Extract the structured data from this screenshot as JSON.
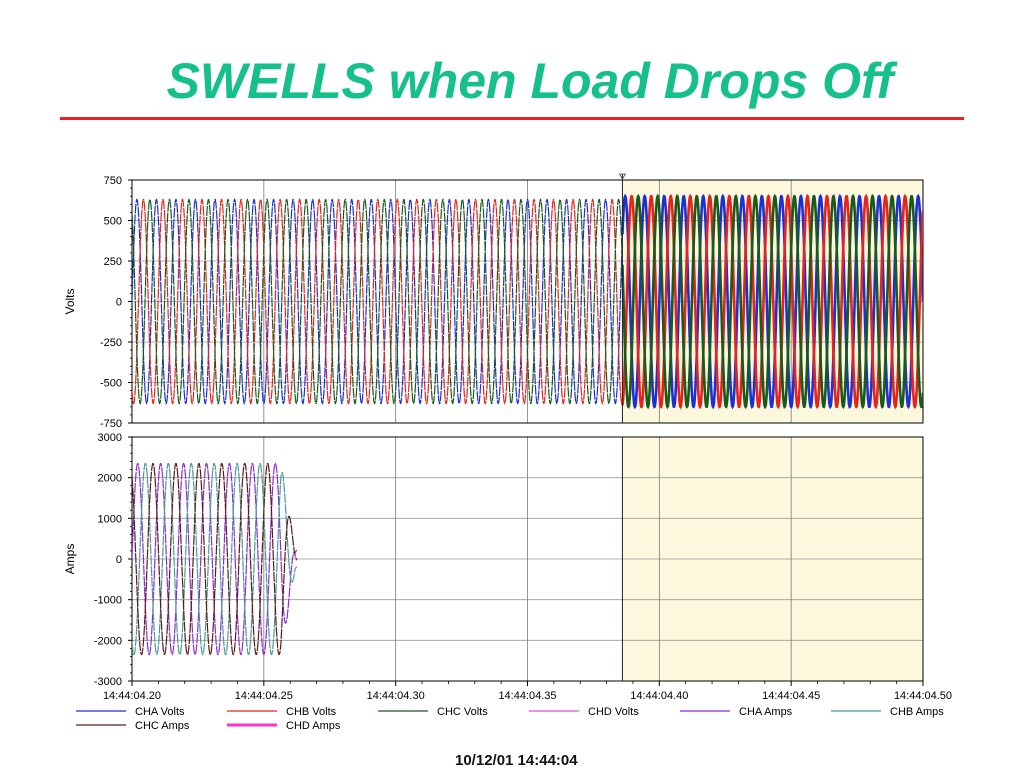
{
  "slide": {
    "title": "SWELLS when Load Drops Off",
    "footer": "10/12/01 14:44:04"
  },
  "chart_data": {
    "type": "line",
    "x_tick_labels": [
      "14:44:04.20",
      "14:44:04.25",
      "14:44:04.30",
      "14:44:04.35",
      "14:44:04.40",
      "14:44:04.45",
      "14:44:04.50"
    ],
    "x_range_seconds": [
      0.2,
      0.5
    ],
    "event_time_seconds": 0.386,
    "highlight_range_seconds": [
      0.386,
      0.5
    ],
    "grid": true,
    "legend_position": "bottom",
    "panels": [
      {
        "ylabel": "Volts",
        "ylim": [
          -750,
          750
        ],
        "yticks": [
          750,
          500,
          250,
          0,
          -250,
          -500,
          -750
        ],
        "series": [
          {
            "name": "CHA Volts",
            "color": "#1f2fd6",
            "amplitude_before": 630,
            "amplitude_after": 650,
            "phase_deg": 0,
            "frequency_hz": 135
          },
          {
            "name": "CHB Volts",
            "color": "#e8231e",
            "amplitude_before": 630,
            "amplitude_after": 650,
            "phase_deg": -120,
            "frequency_hz": 135
          },
          {
            "name": "CHC Volts",
            "color": "#1a5a1a",
            "amplitude_before": 630,
            "amplitude_after": 650,
            "phase_deg": 120,
            "frequency_hz": 135
          }
        ]
      },
      {
        "ylabel": "Amps",
        "ylim": [
          -3000,
          3000
        ],
        "yticks": [
          3000,
          2000,
          1000,
          0,
          -1000,
          -2000,
          -3000
        ],
        "series": [
          {
            "name": "CHA Amps",
            "color": "#8a2be2",
            "amplitude": 2350,
            "phase_deg": 0,
            "frequency_hz": 115,
            "end_seconds": 0.2625
          },
          {
            "name": "CHB Amps",
            "color": "#4a9a9a",
            "amplitude": 2350,
            "phase_deg": -120,
            "frequency_hz": 115,
            "end_seconds": 0.2625
          },
          {
            "name": "CHC Amps",
            "color": "#5a1a1a",
            "amplitude": 2350,
            "phase_deg": 120,
            "frequency_hz": 115,
            "end_seconds": 0.2625
          }
        ]
      }
    ],
    "legend": [
      {
        "name": "CHA Volts",
        "color": "#1f2fd6"
      },
      {
        "name": "CHB Volts",
        "color": "#e8231e"
      },
      {
        "name": "CHC Volts",
        "color": "#1a5a1a"
      },
      {
        "name": "CHD Volts",
        "color": "#e14ee1"
      },
      {
        "name": "CHA Amps",
        "color": "#8a2be2"
      },
      {
        "name": "CHB Amps",
        "color": "#4a9a9a"
      },
      {
        "name": "CHC Amps",
        "color": "#5a1a1a"
      },
      {
        "name": "CHD Amps",
        "color": "#ff33cc",
        "bold": true
      }
    ]
  }
}
